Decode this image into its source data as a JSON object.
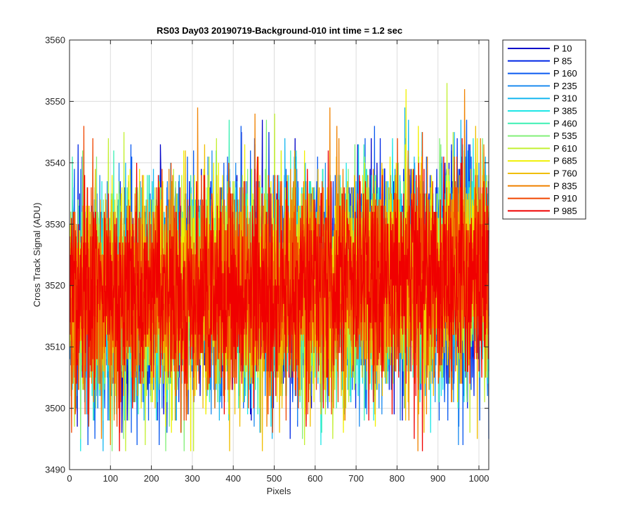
{
  "chart_data": {
    "type": "line",
    "title": "RS03 Day03 20190719-Background-010 int time = 1.2 sec",
    "xlabel": "Pixels",
    "ylabel": "Cross Track Signal (ADU)",
    "xlim": [
      0,
      1024
    ],
    "ylim": [
      3490,
      3560
    ],
    "xticks": [
      0,
      100,
      200,
      300,
      400,
      500,
      600,
      700,
      800,
      900,
      1000
    ],
    "yticks": [
      3490,
      3500,
      3510,
      3520,
      3530,
      3540,
      3550,
      3560
    ],
    "grid": true,
    "legend_position": "outside-top-right",
    "noise_model": {
      "n_points": 1024,
      "mean_start": 3518,
      "mean_end": 3522,
      "std": 8.5,
      "min": 3493,
      "max": 3557
    },
    "series": [
      {
        "name": "P 10",
        "color": "#0000c8"
      },
      {
        "name": "P 85",
        "color": "#0028e6"
      },
      {
        "name": "P 160",
        "color": "#0a5af0"
      },
      {
        "name": "P 235",
        "color": "#1e8cf0"
      },
      {
        "name": "P 310",
        "color": "#18b8f0"
      },
      {
        "name": "P 385",
        "color": "#1ee6e6"
      },
      {
        "name": "P 460",
        "color": "#3cf0b4"
      },
      {
        "name": "P 535",
        "color": "#82f078"
      },
      {
        "name": "P 610",
        "color": "#c3f032"
      },
      {
        "name": "P 685",
        "color": "#f0f000"
      },
      {
        "name": "P 760",
        "color": "#f0be00"
      },
      {
        "name": "P 835",
        "color": "#f08200"
      },
      {
        "name": "P 910",
        "color": "#f04600"
      },
      {
        "name": "P 985",
        "color": "#f00000"
      }
    ]
  }
}
